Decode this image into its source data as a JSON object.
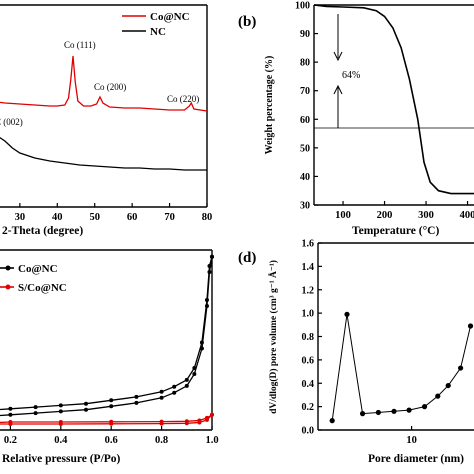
{
  "chart_data": [
    {
      "panel": "(a)",
      "type": "line",
      "xlabel": "2-Theta (degree)",
      "ylabel": "",
      "xlim": [
        10,
        80
      ],
      "x_ticks": [
        "30",
        "40",
        "50",
        "60",
        "70",
        "80"
      ],
      "legend_position": "top-right",
      "series": [
        {
          "name": "Co@NC",
          "color": "#e00000",
          "points": [
            [
              10,
              96
            ],
            [
              14,
              96
            ],
            [
              18,
              99
            ],
            [
              22,
              101
            ],
            [
              26,
              103
            ],
            [
              30,
              104
            ],
            [
              34,
              105
            ],
            [
              38,
              106
            ],
            [
              40,
              106
            ],
            [
              42,
              105
            ],
            [
              43,
              98
            ],
            [
              43.6,
              80
            ],
            [
              44.2,
              56
            ],
            [
              44.8,
              82
            ],
            [
              45.5,
              101
            ],
            [
              47,
              106
            ],
            [
              49,
              106
            ],
            [
              50.5,
              104
            ],
            [
              51.4,
              97
            ],
            [
              52.2,
              103
            ],
            [
              54,
              107
            ],
            [
              58,
              108
            ],
            [
              62,
              108
            ],
            [
              66,
              109
            ],
            [
              70,
              110
            ],
            [
              74,
              110
            ],
            [
              75.3,
              106
            ],
            [
              75.8,
              103
            ],
            [
              76.5,
              109
            ],
            [
              80,
              111
            ]
          ]
        },
        {
          "name": "NC",
          "color": "#000000",
          "points": [
            [
              10,
              172
            ],
            [
              14,
              165
            ],
            [
              18,
              150
            ],
            [
              20,
              142
            ],
            [
              22,
              137
            ],
            [
              24,
              136
            ],
            [
              26,
              141
            ],
            [
              28,
              148
            ],
            [
              30,
              153
            ],
            [
              34,
              158
            ],
            [
              38,
              161
            ],
            [
              42,
              163
            ],
            [
              46,
              165
            ],
            [
              50,
              166
            ],
            [
              54,
              167
            ],
            [
              58,
              168
            ],
            [
              62,
              168
            ],
            [
              66,
              169
            ],
            [
              70,
              169
            ],
            [
              74,
              170
            ],
            [
              78,
              170
            ],
            [
              80,
              170
            ]
          ]
        }
      ],
      "annotations": [
        "Co (111)",
        "Co (200)",
        "Co (220)",
        "C (002)"
      ]
    },
    {
      "panel": "(b)",
      "type": "line",
      "xlabel": "Temperature (°C)",
      "ylabel": "Weight percentage (%)",
      "xlim": [
        30,
        430
      ],
      "ylim": [
        30,
        100
      ],
      "x_ticks": [
        "100",
        "200",
        "300",
        "400"
      ],
      "y_ticks": [
        "30",
        "40",
        "50",
        "60",
        "70",
        "80",
        "90",
        "100"
      ],
      "series": [
        {
          "name": "",
          "color": "#000000",
          "points": [
            [
              30,
              100
            ],
            [
              60,
              99.5
            ],
            [
              100,
              99.3
            ],
            [
              150,
              99
            ],
            [
              180,
              98
            ],
            [
              200,
              96
            ],
            [
              220,
              92
            ],
            [
              240,
              85
            ],
            [
              260,
              74
            ],
            [
              280,
              60
            ],
            [
              295,
              45
            ],
            [
              310,
              38
            ],
            [
              330,
              35
            ],
            [
              360,
              34
            ],
            [
              400,
              34
            ],
            [
              430,
              34
            ]
          ]
        }
      ],
      "annotations": [
        "64%"
      ]
    },
    {
      "panel": "(c)",
      "type": "line",
      "xlabel": "Relative pressure (P/Po)",
      "ylabel": "",
      "xlim": [
        0,
        1
      ],
      "x_ticks": [
        "0.2",
        "0.4",
        "0.6",
        "0.8",
        "1.0"
      ],
      "legend_position": "top-left",
      "series": [
        {
          "name": "Co@NC",
          "color": "#000000",
          "points": [
            [
              0.0,
              0.04
            ],
            [
              0.1,
              0.05
            ],
            [
              0.2,
              0.06
            ],
            [
              0.3,
              0.07
            ],
            [
              0.4,
              0.08
            ],
            [
              0.5,
              0.09
            ],
            [
              0.6,
              0.11
            ],
            [
              0.7,
              0.13
            ],
            [
              0.8,
              0.16
            ],
            [
              0.85,
              0.19
            ],
            [
              0.9,
              0.23
            ],
            [
              0.93,
              0.3
            ],
            [
              0.96,
              0.45
            ],
            [
              0.98,
              0.7
            ],
            [
              0.99,
              0.9
            ],
            [
              1.0,
              0.99
            ]
          ]
        },
        {
          "name": "S/Co@NC",
          "color": "#e00000",
          "points": [
            [
              0.0,
              0.005
            ],
            [
              0.2,
              0.006
            ],
            [
              0.4,
              0.006
            ],
            [
              0.6,
              0.007
            ],
            [
              0.8,
              0.008
            ],
            [
              0.9,
              0.01
            ],
            [
              0.95,
              0.015
            ],
            [
              0.98,
              0.03
            ],
            [
              1.0,
              0.06
            ]
          ]
        }
      ]
    },
    {
      "panel": "(d)",
      "type": "line",
      "xlabel": "Pore diameter (nm)",
      "ylabel": "dV/dlog(D) pore volume (cm³ g⁻¹ Å⁻¹)",
      "x_scale": "log",
      "xlim": [
        1.5,
        40
      ],
      "ylim": [
        0,
        1.6
      ],
      "x_ticks": [
        "10"
      ],
      "y_ticks": [
        "0.0",
        "0.2",
        "0.4",
        "0.6",
        "0.8",
        "1.0",
        "1.2",
        "1.4",
        "1.6"
      ],
      "series": [
        {
          "name": "",
          "color": "#000000",
          "points": [
            [
              2.0,
              0.08
            ],
            [
              2.7,
              0.99
            ],
            [
              3.7,
              0.14
            ],
            [
              5.1,
              0.15
            ],
            [
              7.0,
              0.16
            ],
            [
              9.5,
              0.17
            ],
            [
              13,
              0.2
            ],
            [
              17,
              0.29
            ],
            [
              21,
              0.38
            ],
            [
              27,
              0.53
            ],
            [
              33,
              0.89
            ]
          ]
        }
      ]
    }
  ],
  "labels": {
    "panel_b": "(b)",
    "panel_d": "(d)"
  }
}
